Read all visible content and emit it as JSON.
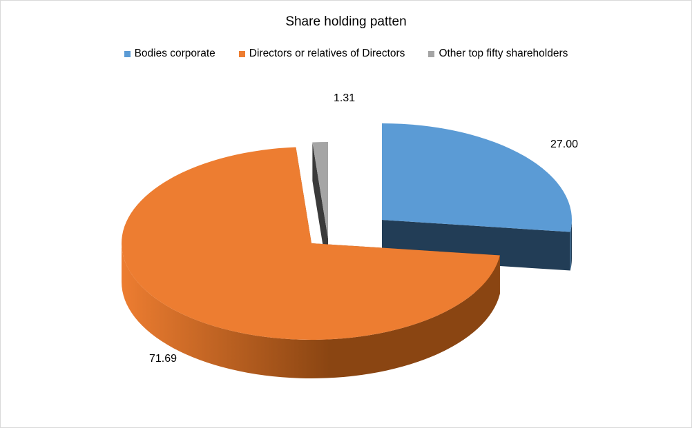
{
  "chart_data": {
    "type": "pie",
    "title": "Share holding patten",
    "legend_position": "top",
    "three_d": true,
    "exploded": true,
    "slices": [
      {
        "name": "Bodies corporate",
        "value": 27.0,
        "label": "27.00",
        "color": "#5b9bd5",
        "side_color": "#223d56"
      },
      {
        "name": "Directors or relatives of Directors",
        "value": 71.69,
        "label": "71.69",
        "color": "#ed7d31",
        "side_color": "#8a4512"
      },
      {
        "name": "Other top fifty shareholders",
        "value": 1.31,
        "label": "1.31",
        "color": "#a5a5a5",
        "side_color": "#3a3a3a"
      }
    ]
  }
}
